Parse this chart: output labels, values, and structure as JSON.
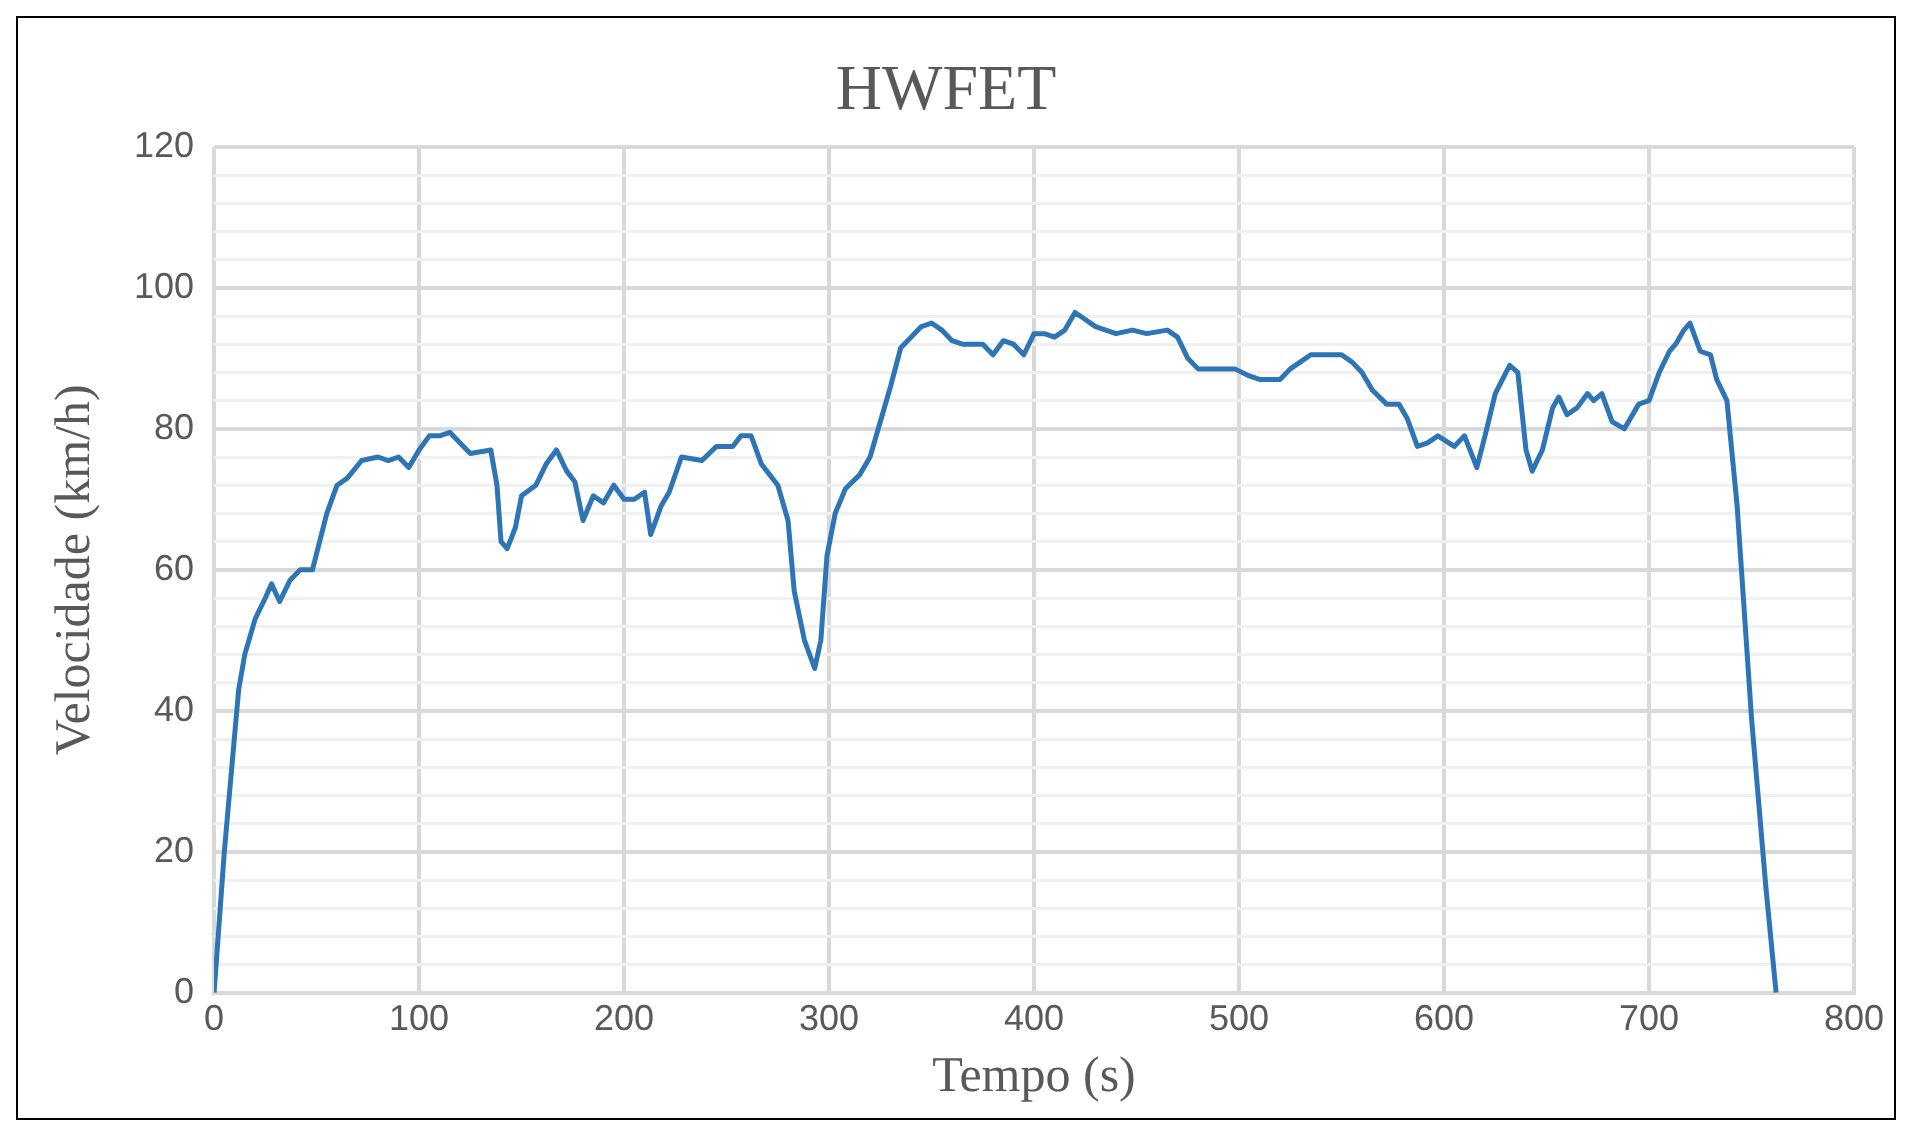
{
  "chart_data": {
    "type": "line",
    "title": "HWFET",
    "xlabel": "Tempo (s)",
    "ylabel": "Velocidade (km/h)",
    "xlim": [
      0,
      800
    ],
    "xticks": [
      0,
      100,
      200,
      300,
      400,
      500,
      600,
      700,
      800
    ],
    "ylim": [
      0,
      120
    ],
    "yticks": [
      0,
      {
        "value": 4,
        "label": null
      },
      {
        "value": 8,
        "label": null
      },
      {
        "value": 12,
        "label": null
      },
      {
        "value": 16,
        "label": null
      },
      20,
      {
        "value": 24,
        "label": null
      },
      {
        "value": 28,
        "label": null
      },
      {
        "value": 32,
        "label": null
      },
      {
        "value": 36,
        "label": null
      },
      40,
      {
        "value": 44,
        "label": null
      },
      {
        "value": 48,
        "label": null
      },
      {
        "value": 52,
        "label": null
      },
      {
        "value": 56,
        "label": null
      },
      60,
      {
        "value": 64,
        "label": null
      },
      {
        "value": 68,
        "label": null
      },
      {
        "value": 72,
        "label": null
      },
      {
        "value": 76,
        "label": null
      },
      80,
      {
        "value": 84,
        "label": null
      },
      {
        "value": 88,
        "label": null
      },
      {
        "value": 92,
        "label": null
      },
      {
        "value": 96,
        "label": null
      },
      100,
      {
        "value": 104,
        "label": null
      },
      {
        "value": 108,
        "label": null
      },
      {
        "value": 112,
        "label": null
      },
      {
        "value": 116,
        "label": null
      },
      120
    ],
    "grid": true,
    "legend": false,
    "marker": "none",
    "line_style": "solid",
    "x": [
      0,
      5,
      12,
      15,
      20,
      25,
      28,
      32,
      37,
      42,
      48,
      55,
      60,
      65,
      72,
      80,
      85,
      90,
      95,
      100,
      105,
      110,
      115,
      120,
      125,
      135,
      138,
      140,
      143,
      147,
      150,
      157,
      162,
      167,
      172,
      176,
      180,
      185,
      190,
      195,
      200,
      205,
      210,
      213,
      218,
      222,
      228,
      238,
      245,
      253,
      257,
      262,
      267,
      275,
      280,
      283,
      288,
      293,
      296,
      299,
      303,
      308,
      315,
      320,
      325,
      330,
      335,
      340,
      345,
      350,
      355,
      360,
      365,
      375,
      380,
      385,
      390,
      395,
      400,
      405,
      410,
      415,
      420,
      425,
      430,
      440,
      448,
      455,
      465,
      470,
      475,
      480,
      490,
      498,
      505,
      510,
      520,
      525,
      530,
      535,
      550,
      555,
      560,
      565,
      572,
      578,
      582,
      587,
      592,
      597,
      605,
      610,
      616,
      620,
      625,
      632,
      636,
      640,
      643,
      648,
      653,
      656,
      660,
      665,
      670,
      673,
      677,
      682,
      688,
      695,
      700,
      705,
      710,
      713,
      717,
      720,
      725,
      730,
      733,
      738,
      743,
      750,
      757,
      762
    ],
    "series": [
      {
        "color": "#2e75b6",
        "values": [
          0,
          20,
          43,
          48,
          53,
          56,
          58,
          55.5,
          58.5,
          60,
          60,
          68,
          72,
          73,
          75.5,
          76,
          75.5,
          76,
          74.5,
          77,
          79,
          79,
          79.5,
          78,
          76.5,
          77,
          72,
          64,
          63,
          66,
          70.5,
          72,
          75,
          77,
          74,
          72.5,
          67,
          70.5,
          69.5,
          72,
          70,
          70,
          71,
          65,
          69,
          71,
          76,
          75.5,
          77.5,
          77.5,
          79,
          79,
          75,
          72,
          67,
          57,
          50,
          46,
          50,
          62,
          68,
          71.5,
          73.5,
          76,
          81,
          86,
          91.5,
          93,
          94.5,
          95,
          94,
          92.5,
          92,
          92,
          90.5,
          92.5,
          92,
          90.5,
          93.5,
          93.5,
          93,
          94,
          96.5,
          95.5,
          94.5,
          93.5,
          94,
          93.5,
          94,
          93,
          90,
          88.5,
          88.5,
          88.5,
          87.5,
          87,
          87,
          88.5,
          89.5,
          90.5,
          90.5,
          89.5,
          88,
          85.5,
          83.5,
          83.5,
          81.5,
          77.5,
          78,
          79,
          77.5,
          79,
          74.5,
          79,
          85,
          89,
          88,
          77,
          74,
          77,
          83,
          84.5,
          82,
          83,
          85,
          84,
          85,
          81,
          80,
          83.5,
          84,
          88,
          91,
          92,
          94,
          95,
          91,
          90.5,
          87,
          84,
          69,
          39,
          15,
          0
        ]
      }
    ]
  }
}
